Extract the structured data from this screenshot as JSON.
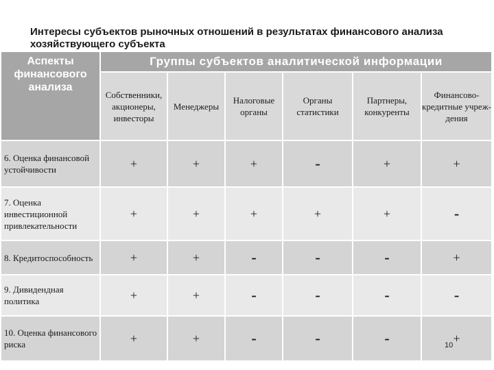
{
  "title": "Интересы субъектов рыночных отношений в результатах финансового анализа хозяйствующего субъекта",
  "header": {
    "aspects_label": "Аспекты финансового анализа",
    "groups_label": "Группы субъектов аналитической информации",
    "columns": [
      "Собственники, акционеры, инвесторы",
      "Менеджеры",
      "Налоговые органы",
      "Органы статистики",
      "Партнеры, конкуренты",
      "Финансово-кредитные учреж-дения"
    ]
  },
  "rows": [
    {
      "label": "6. Оценка финансовой устойчивости",
      "marks": [
        "+",
        "+",
        "+",
        "-",
        "+",
        "+"
      ]
    },
    {
      "label": "7. Оценка инвестиционной привлекательности",
      "marks": [
        "+",
        "+",
        "+",
        "+",
        "+",
        "-"
      ]
    },
    {
      "label": "8. Кредитоспособность",
      "marks": [
        "+",
        "+",
        "-",
        "-",
        "-",
        "+"
      ]
    },
    {
      "label": "9. Дивидендная политика",
      "marks": [
        "+",
        "+",
        "-",
        "-",
        "-",
        "-"
      ]
    },
    {
      "label": "10. Оценка финансового риска",
      "marks": [
        "+",
        "+",
        "-",
        "-",
        "-",
        "+"
      ]
    }
  ],
  "page_number": "10"
}
